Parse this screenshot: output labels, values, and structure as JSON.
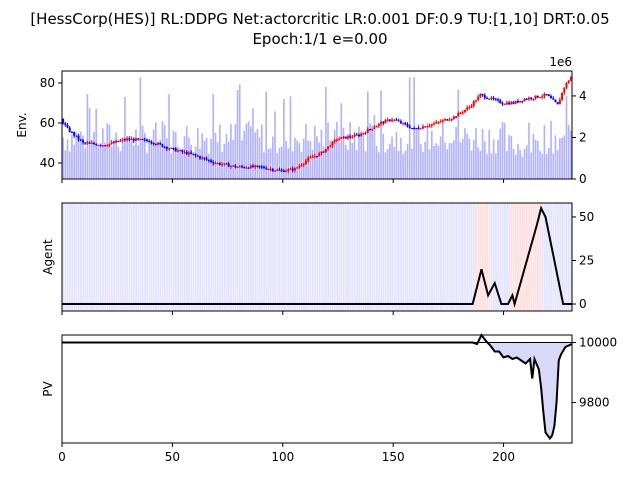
{
  "figure": {
    "title_line1": "[HessCorp(HES)] RL:DDPG Net:actorcritic LR:0.001 DF:0.9 TU:[1,10] DRT:0.05",
    "title_line2": "Epoch:1/1 e=0.00"
  },
  "chart_data": [
    {
      "type": "candlestick+bar",
      "name": "env",
      "ylabel": "Env.",
      "xlim": [
        0,
        231
      ],
      "ylim_left": [
        32,
        86
      ],
      "yticks_left": [
        "40",
        "60",
        "80"
      ],
      "ylim_right": [
        0,
        5200000
      ],
      "yticks_right": [
        "0",
        "2",
        "4"
      ],
      "right_offset_label": "1e6",
      "price_anchors": [
        [
          0,
          62
        ],
        [
          3,
          57
        ],
        [
          10,
          50
        ],
        [
          20,
          49
        ],
        [
          30,
          52
        ],
        [
          40,
          51
        ],
        [
          50,
          47
        ],
        [
          60,
          44
        ],
        [
          70,
          40
        ],
        [
          80,
          38
        ],
        [
          90,
          38
        ],
        [
          100,
          36
        ],
        [
          106,
          37
        ],
        [
          112,
          42
        ],
        [
          118,
          45
        ],
        [
          125,
          52
        ],
        [
          135,
          54
        ],
        [
          145,
          60
        ],
        [
          150,
          62
        ],
        [
          160,
          57
        ],
        [
          170,
          60
        ],
        [
          178,
          63
        ],
        [
          185,
          68
        ],
        [
          190,
          74
        ],
        [
          195,
          72
        ],
        [
          200,
          70
        ],
        [
          205,
          70
        ],
        [
          210,
          72
        ],
        [
          215,
          73
        ],
        [
          220,
          74
        ],
        [
          225,
          69
        ],
        [
          228,
          78
        ],
        [
          231,
          83
        ]
      ],
      "volume_note": "Volume bars (millions) from the 'volume' series."
    },
    {
      "type": "line+bands",
      "name": "agent",
      "ylabel": "Agent",
      "xlim": [
        0,
        231
      ],
      "ylim": [
        -4,
        58
      ],
      "yticks_right": [
        "0",
        "25",
        "50"
      ],
      "line": [
        [
          0,
          0
        ],
        [
          186,
          0
        ],
        [
          190,
          20
        ],
        [
          193,
          5
        ],
        [
          196,
          12
        ],
        [
          199,
          0
        ],
        [
          202,
          0
        ],
        [
          204,
          5
        ],
        [
          205,
          0
        ],
        [
          215,
          45
        ],
        [
          217,
          55
        ],
        [
          219,
          50
        ],
        [
          227,
          0
        ],
        [
          231,
          0
        ]
      ],
      "band_note": "Faint blue bands across most steps, faint red bands near 187-193 and 203-216."
    },
    {
      "type": "line+fill",
      "name": "pv",
      "ylabel": "PV",
      "xlim": [
        0,
        231
      ],
      "ylim": [
        9665,
        10025
      ],
      "yticks_right": [
        "9800",
        "10000"
      ],
      "xticks": [
        "0",
        "50",
        "100",
        "150",
        "200"
      ],
      "baseline": 10000,
      "line": [
        [
          0,
          10000
        ],
        [
          186,
          10000
        ],
        [
          188,
          9995
        ],
        [
          190,
          10025
        ],
        [
          192,
          10005
        ],
        [
          194,
          9990
        ],
        [
          196,
          9970
        ],
        [
          198,
          9970
        ],
        [
          200,
          9950
        ],
        [
          202,
          9955
        ],
        [
          204,
          9945
        ],
        [
          206,
          9950
        ],
        [
          208,
          9940
        ],
        [
          210,
          9930
        ],
        [
          212,
          9945
        ],
        [
          213,
          9880
        ],
        [
          214,
          9945
        ],
        [
          216,
          9910
        ],
        [
          217,
          9850
        ],
        [
          218,
          9770
        ],
        [
          219,
          9700
        ],
        [
          220,
          9690
        ],
        [
          221,
          9680
        ],
        [
          222,
          9690
        ],
        [
          223,
          9720
        ],
        [
          224,
          9800
        ],
        [
          225,
          9940
        ],
        [
          226,
          9960
        ],
        [
          228,
          9985
        ],
        [
          231,
          9995
        ]
      ]
    }
  ]
}
